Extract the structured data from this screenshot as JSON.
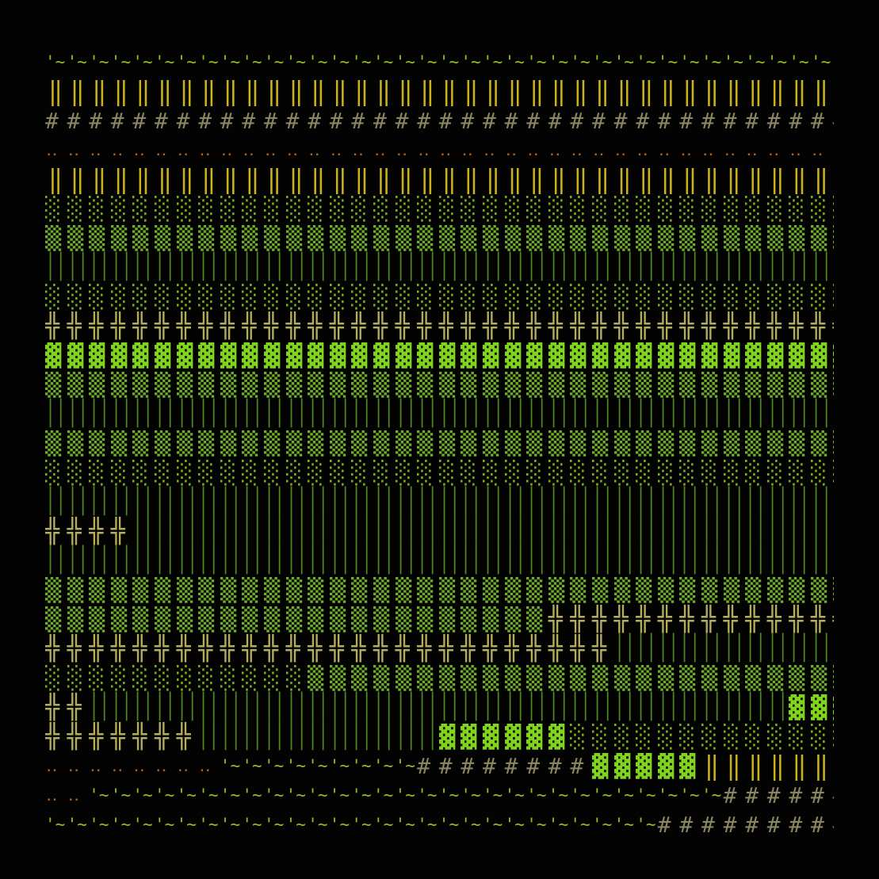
{
  "palette": {
    "'~": "#8fbf1f",
    "‖": "#c9b21a",
    "#": "#8a8660",
    "‥": "#b8651a",
    "░": "#7cae1e",
    "▒": "#6fae2a",
    "▓": "#80d41e",
    "││": "#4f8a1e",
    "╬": "#b4ad5c",
    " ": "#000000"
  },
  "rows": [
    [
      [
        "'~",
        37
      ]
    ],
    [
      [
        "‖",
        36
      ],
      [
        " ",
        1
      ]
    ],
    [
      [
        "#",
        37
      ]
    ],
    [
      [
        "‥",
        37
      ]
    ],
    [
      [
        "‖",
        36
      ],
      [
        " ",
        1
      ]
    ],
    [
      [
        "░",
        37
      ]
    ],
    [
      [
        "▒",
        37
      ]
    ],
    [
      [
        "││",
        37
      ]
    ],
    [
      [
        "░",
        37
      ]
    ],
    [
      [
        "╬",
        37
      ]
    ],
    [
      [
        "▓",
        37
      ]
    ],
    [
      [
        "▒",
        37
      ]
    ],
    [
      [
        "││",
        37
      ]
    ],
    [
      [
        "▒",
        37
      ]
    ],
    [
      [
        "░",
        37
      ]
    ],
    [
      [
        "││",
        37
      ]
    ],
    [
      [
        "╬",
        4
      ],
      [
        "││",
        33
      ]
    ],
    [
      [
        "││",
        37
      ]
    ],
    [
      [
        "▒",
        37
      ]
    ],
    [
      [
        "▒",
        23
      ],
      [
        "╬",
        14
      ]
    ],
    [
      [
        "╬",
        26
      ],
      [
        "││",
        11
      ]
    ],
    [
      [
        "░",
        12
      ],
      [
        "▒",
        25
      ]
    ],
    [
      [
        "╬",
        2
      ],
      [
        "││",
        32
      ],
      [
        "▓",
        3
      ]
    ],
    [
      [
        "╬",
        7
      ],
      [
        "││",
        11
      ],
      [
        "▓",
        6
      ],
      [
        "░",
        13
      ]
    ],
    [
      [
        "‥",
        8
      ],
      [
        "'~",
        9
      ],
      [
        "#",
        8
      ],
      [
        "▓",
        5
      ],
      [
        "‖",
        6
      ],
      [
        " ",
        1
      ]
    ],
    [
      [
        "‥",
        2
      ],
      [
        "'~",
        29
      ],
      [
        "#",
        6
      ]
    ],
    [
      [
        "'~",
        28
      ],
      [
        "#",
        9
      ]
    ]
  ]
}
